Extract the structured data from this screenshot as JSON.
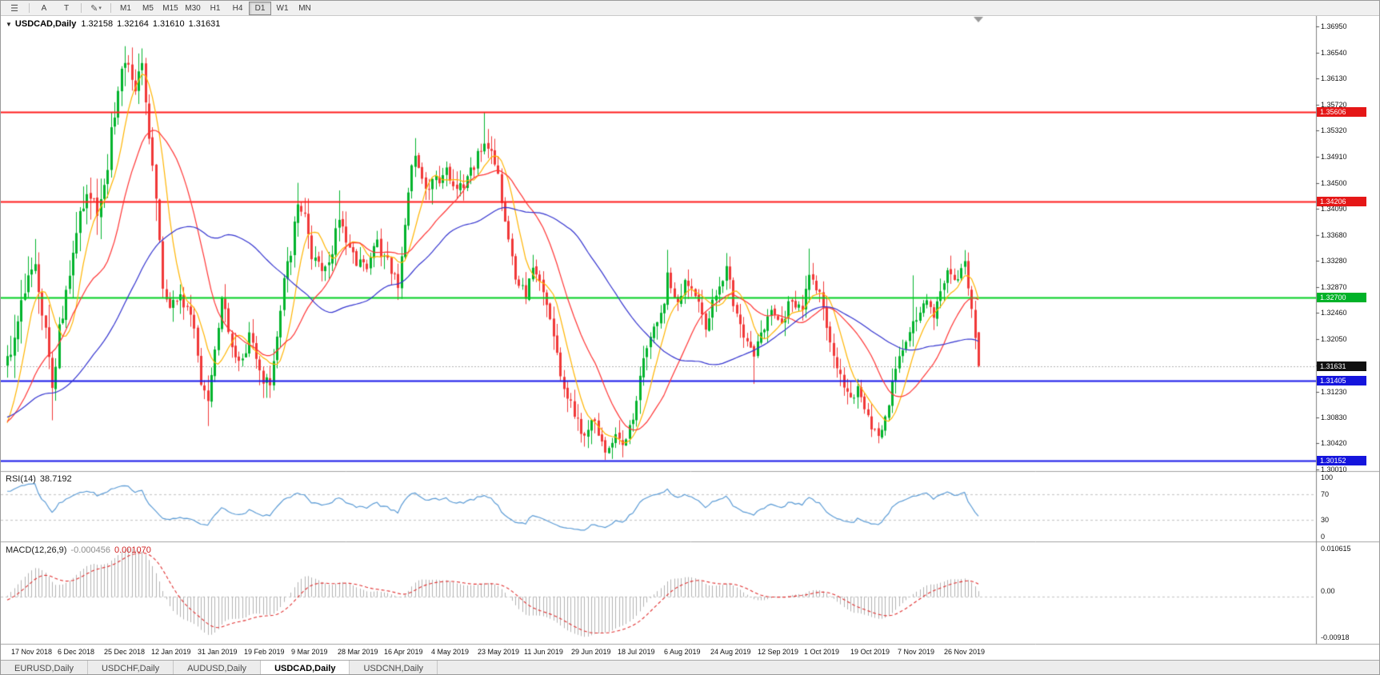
{
  "toolbar": {
    "menu_icon_label": "☰",
    "annotation_buttons": [
      "A",
      "T"
    ],
    "draw_button": "✎",
    "draw_caret": "▾",
    "timeframes": [
      "M1",
      "M5",
      "M15",
      "M30",
      "H1",
      "H4",
      "D1",
      "W1",
      "MN"
    ],
    "active_timeframe": "D1"
  },
  "chart": {
    "title": {
      "dropdown_icon": "▼",
      "symbol": "USDCAD,Daily",
      "open": "1.32158",
      "high": "1.32164",
      "low": "1.31610",
      "close": "1.31631"
    },
    "y_ticks": [
      "1.36950",
      "1.36540",
      "1.36130",
      "1.35720",
      "1.35320",
      "1.34910",
      "1.34500",
      "1.34090",
      "1.33680",
      "1.33280",
      "1.32870",
      "1.32460",
      "1.32050",
      "1.31640",
      "1.31230",
      "1.30830",
      "1.30420",
      "1.30010"
    ],
    "price_tags": [
      {
        "text": "1.35606",
        "price": 1.35606,
        "bg": "#e51717"
      },
      {
        "text": "1.34206",
        "price": 1.34206,
        "bg": "#e51717"
      },
      {
        "text": "1.32700",
        "price": 1.327,
        "bg": "#00b228"
      },
      {
        "text": "1.31631",
        "price": 1.31631,
        "bg": "#101010"
      },
      {
        "text": "1.31405",
        "price": 1.31405,
        "bg": "#1515dd"
      },
      {
        "text": "1.30152",
        "price": 1.30152,
        "bg": "#1515dd"
      }
    ],
    "h_lines": [
      {
        "price": 1.35606,
        "color": "#ff1c1c",
        "w": 2
      },
      {
        "price": 1.34206,
        "color": "#ff1c1c",
        "w": 2
      },
      {
        "price": 1.327,
        "color": "#00cf21",
        "w": 2
      },
      {
        "price": 1.31405,
        "color": "#1616e8",
        "w": 2
      },
      {
        "price": 1.30152,
        "color": "#1616e8",
        "w": 2
      }
    ],
    "current_price": 1.31631
  },
  "rsi": {
    "label": "RSI(14)",
    "value": "38.7192",
    "axis_labels": [
      "100",
      "70",
      "30",
      "0"
    ],
    "levels": [
      70,
      30
    ],
    "color": "#5b9bd5"
  },
  "macd": {
    "label": "MACD(12,26,9)",
    "value_main": "-0.000456",
    "value_signal": "0.001070",
    "axis_labels": [
      "0.010615",
      "0.00",
      "-0.00918"
    ],
    "range": [
      -0.00918,
      0.010615
    ]
  },
  "x_labels": [
    "17 Nov 2018",
    "6 Dec 2018",
    "25 Dec 2018",
    "12 Jan 2019",
    "31 Jan 2019",
    "19 Feb 2019",
    "9 Mar 2019",
    "28 Mar 2019",
    "16 Apr 2019",
    "4 May 2019",
    "23 May 2019",
    "11 Jun 2019",
    "29 Jun 2019",
    "18 Jul 2019",
    "6 Aug 2019",
    "24 Aug 2019",
    "12 Sep 2019",
    "1 Oct 2019",
    "19 Oct 2019",
    "7 Nov 2019",
    "26 Nov 2019"
  ],
  "tabs": [
    {
      "label": "EURUSD,Daily",
      "active": false
    },
    {
      "label": "USDCHF,Daily",
      "active": false
    },
    {
      "label": "AUDUSD,Daily",
      "active": false
    },
    {
      "label": "USDCAD,Daily",
      "active": true
    },
    {
      "label": "USDCNH,Daily",
      "active": false
    }
  ],
  "chart_data": {
    "type": "candlestick",
    "symbol": "USDCAD",
    "timeframe": "Daily",
    "ylim": [
      1.3001,
      1.3695
    ],
    "n_bars": 282,
    "colors": {
      "up": "#00b32c",
      "down": "#f13838"
    },
    "overlays": [
      {
        "name": "ma-fast",
        "period": 8,
        "color": "#ffb400"
      },
      {
        "name": "ma-mid",
        "period": 20,
        "color": "#ff3434"
      },
      {
        "name": "ma-slow",
        "period": 50,
        "color": "#3434cf"
      }
    ],
    "indicators": [
      {
        "name": "RSI",
        "period": 14,
        "last": 38.7192
      },
      {
        "name": "MACD",
        "fast": 12,
        "slow": 26,
        "signal": 9,
        "last_main": -0.000456,
        "last_signal": 0.00107
      }
    ],
    "last_candle": {
      "o": 1.32158,
      "h": 1.32164,
      "l": 1.3161,
      "c": 1.31631
    },
    "waypoints": [
      [
        0,
        1.317
      ],
      [
        2,
        1.3215
      ],
      [
        5,
        1.329
      ],
      [
        8,
        1.332
      ],
      [
        10,
        1.325
      ],
      [
        13,
        1.3125
      ],
      [
        15,
        1.323
      ],
      [
        18,
        1.3295
      ],
      [
        21,
        1.3395
      ],
      [
        23,
        1.343
      ],
      [
        26,
        1.34
      ],
      [
        29,
        1.3485
      ],
      [
        31,
        1.3565
      ],
      [
        33,
        1.362
      ],
      [
        35,
        1.3635
      ],
      [
        37,
        1.3605
      ],
      [
        39,
        1.3625
      ],
      [
        41,
        1.353
      ],
      [
        43,
        1.344
      ],
      [
        45,
        1.329
      ],
      [
        47,
        1.3245
      ],
      [
        49,
        1.3272
      ],
      [
        52,
        1.3252
      ],
      [
        54,
        1.3218
      ],
      [
        56,
        1.3132
      ],
      [
        58,
        1.31
      ],
      [
        60,
        1.3182
      ],
      [
        62,
        1.3262
      ],
      [
        64,
        1.3222
      ],
      [
        67,
        1.3162
      ],
      [
        70,
        1.3206
      ],
      [
        73,
        1.3156
      ],
      [
        76,
        1.3126
      ],
      [
        78,
        1.3212
      ],
      [
        80,
        1.3302
      ],
      [
        82,
        1.3346
      ],
      [
        84,
        1.342
      ],
      [
        86,
        1.3392
      ],
      [
        88,
        1.3332
      ],
      [
        91,
        1.3312
      ],
      [
        94,
        1.3346
      ],
      [
        96,
        1.3392
      ],
      [
        98,
        1.3362
      ],
      [
        101,
        1.3322
      ],
      [
        104,
        1.3316
      ],
      [
        107,
        1.3352
      ],
      [
        110,
        1.3322
      ],
      [
        113,
        1.3292
      ],
      [
        116,
        1.3442
      ],
      [
        118,
        1.3492
      ],
      [
        121,
        1.3432
      ],
      [
        124,
        1.3452
      ],
      [
        127,
        1.3476
      ],
      [
        130,
        1.3436
      ],
      [
        133,
        1.3456
      ],
      [
        136,
        1.3492
      ],
      [
        138,
        1.3522
      ],
      [
        140,
        1.3496
      ],
      [
        142,
        1.3456
      ],
      [
        144,
        1.3392
      ],
      [
        147,
        1.3302
      ],
      [
        150,
        1.3272
      ],
      [
        152,
        1.3326
      ],
      [
        155,
        1.3286
      ],
      [
        158,
        1.3202
      ],
      [
        161,
        1.3132
      ],
      [
        164,
        1.3086
      ],
      [
        167,
        1.3052
      ],
      [
        170,
        1.3078
      ],
      [
        173,
        1.3032
      ],
      [
        176,
        1.3062
      ],
      [
        178,
        1.3042
      ],
      [
        181,
        1.3088
      ],
      [
        184,
        1.3166
      ],
      [
        187,
        1.3216
      ],
      [
        190,
        1.3266
      ],
      [
        191,
        1.3306
      ],
      [
        193,
        1.3262
      ],
      [
        196,
        1.3292
      ],
      [
        199,
        1.3268
      ],
      [
        202,
        1.3228
      ],
      [
        205,
        1.3282
      ],
      [
        208,
        1.3312
      ],
      [
        211,
        1.3242
      ],
      [
        214,
        1.3202
      ],
      [
        216,
        1.3178
      ],
      [
        218,
        1.3208
      ],
      [
        221,
        1.3252
      ],
      [
        224,
        1.3228
      ],
      [
        227,
        1.3272
      ],
      [
        230,
        1.3248
      ],
      [
        232,
        1.3312
      ],
      [
        235,
        1.3272
      ],
      [
        238,
        1.3202
      ],
      [
        241,
        1.3148
      ],
      [
        244,
        1.3108
      ],
      [
        246,
        1.3132
      ],
      [
        249,
        1.3082
      ],
      [
        252,
        1.3048
      ],
      [
        255,
        1.3108
      ],
      [
        258,
        1.3172
      ],
      [
        260,
        1.3202
      ],
      [
        263,
        1.3242
      ],
      [
        266,
        1.3272
      ],
      [
        268,
        1.3248
      ],
      [
        271,
        1.3302
      ],
      [
        273,
        1.3312
      ],
      [
        275,
        1.3298
      ],
      [
        277,
        1.3322
      ],
      [
        279,
        1.3248
      ],
      [
        280,
        1.3216
      ],
      [
        281,
        1.31631
      ]
    ],
    "spike_highs": [
      [
        8,
        1.3362
      ],
      [
        23,
        1.3447
      ],
      [
        34,
        1.3664
      ],
      [
        35,
        1.365
      ],
      [
        84,
        1.345
      ],
      [
        96,
        1.3438
      ],
      [
        118,
        1.352
      ],
      [
        138,
        1.3561
      ],
      [
        191,
        1.3345
      ],
      [
        208,
        1.334
      ],
      [
        232,
        1.3347
      ],
      [
        262,
        1.3305
      ]
    ],
    "spike_lows": [
      [
        13,
        1.3078
      ],
      [
        58,
        1.3069
      ],
      [
        76,
        1.3113
      ],
      [
        173,
        1.3016
      ],
      [
        178,
        1.302
      ],
      [
        216,
        1.3135
      ],
      [
        252,
        1.3042
      ]
    ]
  }
}
